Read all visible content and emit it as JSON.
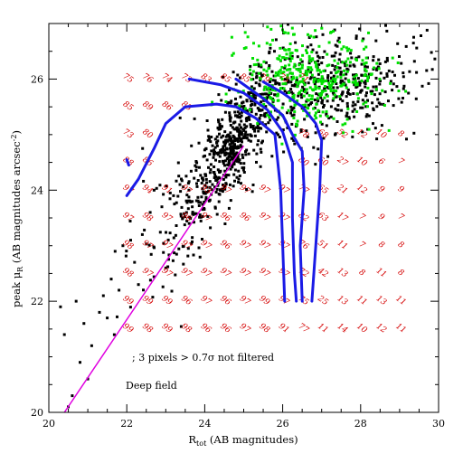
{
  "chart_data": {
    "type": "scatter",
    "title": "",
    "xlabel": "R",
    "xlabel_sub": "tot",
    "xlabel_suffix": " (AB magnitudes)",
    "ylabel": "peak μ",
    "ylabel_sub": "R",
    "ylabel_suffix": "  (AB magnitudes arcsec",
    "ylabel_sup": "-2",
    "ylabel_close": ")",
    "xlim": [
      20,
      30
    ],
    "ylim": [
      20,
      27
    ],
    "xticks": [
      20,
      22,
      24,
      26,
      28,
      30
    ],
    "yticks": [
      20,
      22,
      24,
      26
    ],
    "annotations": [
      "; 3 pixels > 0.7σ not filtered",
      "Deep field"
    ],
    "colors": {
      "black_points": "#000000",
      "green_points": "#00e000",
      "blue_curves": "#1a1ae6",
      "magenta_line": "#e000e0",
      "grid_numbers": "#d40000"
    },
    "completeness_grid": {
      "x": [
        22.0,
        22.5,
        23.0,
        23.5,
        24.0,
        24.5,
        25.0,
        25.5,
        26.0,
        26.5,
        27.0,
        27.5,
        28.0,
        28.5,
        29.0
      ],
      "rows": [
        {
          "y": 25.98,
          "values": [
            "75",
            "76",
            "74",
            "73",
            "83",
            "85",
            "85",
            "79",
            "75",
            "71",
            "",
            "",
            "",
            "",
            ""
          ]
        },
        {
          "y": 25.48,
          "values": [
            "85",
            "89",
            "86",
            "85",
            "",
            "",
            "",
            "",
            "",
            "",
            "",
            "",
            "",
            "",
            ""
          ]
        },
        {
          "y": 24.98,
          "values": [
            "73",
            "80",
            "",
            "",
            "",
            "",
            "",
            "",
            "",
            "78",
            "68",
            "52",
            "12",
            "10",
            "8"
          ]
        },
        {
          "y": 24.48,
          "values": [
            "88",
            "86",
            "",
            "",
            "",
            "",
            "",
            "",
            "",
            "80",
            "60",
            "27",
            "10",
            "6",
            "7"
          ]
        },
        {
          "y": 23.98,
          "values": [
            "97",
            "94",
            "91",
            "97",
            "93",
            "97",
            "97",
            "97",
            "97",
            "77",
            "65",
            "21",
            "12",
            "9",
            "9"
          ]
        },
        {
          "y": 23.48,
          "values": [
            "97",
            "98",
            "97",
            "96",
            "97",
            "96",
            "96",
            "97",
            "97",
            "82",
            "63",
            "17",
            "7",
            "9",
            "7"
          ]
        },
        {
          "y": 22.98,
          "values": [
            "98",
            "97",
            "97",
            "97",
            "97",
            "96",
            "97",
            "97",
            "97",
            "76",
            "51",
            "11",
            "7",
            "8",
            "8"
          ]
        },
        {
          "y": 22.48,
          "values": [
            "98",
            "97",
            "97",
            "97",
            "97",
            "97",
            "97",
            "97",
            "97",
            "72",
            "42",
            "13",
            "8",
            "11",
            "8"
          ]
        },
        {
          "y": 21.98,
          "values": [
            "99",
            "99",
            "99",
            "96",
            "97",
            "96",
            "97",
            "99",
            "97",
            "75",
            "25",
            "13",
            "11",
            "13",
            "11"
          ]
        },
        {
          "y": 21.48,
          "values": [
            "99",
            "98",
            "99",
            "98",
            "96",
            "96",
            "97",
            "98",
            "91",
            "77",
            "11",
            "14",
            "10",
            "12",
            "11"
          ]
        }
      ]
    },
    "series": [
      {
        "style": "curve",
        "points": [
          [
            22.0,
            23.9
          ],
          [
            22.3,
            24.2
          ],
          [
            22.7,
            24.75
          ],
          [
            23.0,
            25.2
          ],
          [
            23.5,
            25.5
          ],
          [
            24.3,
            25.55
          ],
          [
            24.8,
            25.5
          ],
          [
            25.3,
            25.3
          ],
          [
            25.8,
            25.0
          ],
          [
            25.95,
            24.0
          ],
          [
            26.05,
            22.0
          ]
        ]
      },
      {
        "style": "curve",
        "points": [
          [
            23.6,
            26.0
          ],
          [
            24.4,
            25.9
          ],
          [
            25.0,
            25.75
          ],
          [
            25.6,
            25.45
          ],
          [
            26.0,
            25.05
          ],
          [
            26.25,
            24.5
          ],
          [
            26.25,
            23.5
          ],
          [
            26.3,
            22.5
          ],
          [
            26.35,
            22.0
          ]
        ]
      },
      {
        "style": "curve",
        "points": [
          [
            24.8,
            26.0
          ],
          [
            25.5,
            25.65
          ],
          [
            26.0,
            25.35
          ],
          [
            26.25,
            25.0
          ],
          [
            26.5,
            24.7
          ],
          [
            26.55,
            24.0
          ],
          [
            26.45,
            23.0
          ],
          [
            26.5,
            22.0
          ]
        ]
      },
      {
        "style": "curve",
        "points": [
          [
            25.5,
            25.95
          ],
          [
            26.0,
            25.75
          ],
          [
            26.5,
            25.5
          ],
          [
            26.85,
            25.2
          ],
          [
            27.0,
            24.9
          ],
          [
            26.95,
            24.0
          ],
          [
            26.85,
            23.0
          ],
          [
            26.75,
            22.0
          ]
        ]
      },
      {
        "style": "curve",
        "points": [
          [
            22.0,
            24.55
          ],
          [
            22.05,
            24.45
          ]
        ]
      },
      {
        "style": "line",
        "points": [
          [
            20.4,
            20.0
          ],
          [
            25.0,
            24.8
          ]
        ]
      },
      {
        "style": "black-points",
        "generator": {
          "seed": 17,
          "clusters": [
            {
              "n": 520,
              "cx": 24.7,
              "cy": 24.8,
              "sx": 0.55,
              "sy": 0.65,
              "corr": 0.75
            },
            {
              "n": 420,
              "cx": 27.3,
              "cy": 25.9,
              "sx": 1.1,
              "sy": 0.45,
              "corr": 0.2
            },
            {
              "n": 90,
              "cx": 23.2,
              "cy": 23.4,
              "sx": 0.6,
              "sy": 0.8,
              "corr": 0.6
            }
          ]
        },
        "points": [
          [
            20.3,
            21.9
          ],
          [
            20.4,
            21.4
          ],
          [
            20.5,
            20.1
          ],
          [
            20.6,
            20.3
          ],
          [
            20.7,
            22.0
          ],
          [
            20.8,
            20.9
          ],
          [
            20.9,
            21.6
          ],
          [
            21.0,
            20.6
          ],
          [
            21.1,
            21.2
          ],
          [
            21.3,
            21.8
          ],
          [
            21.4,
            22.1
          ],
          [
            21.5,
            21.7
          ],
          [
            21.6,
            22.4
          ],
          [
            21.7,
            22.9
          ],
          [
            21.8,
            22.2
          ],
          [
            21.9,
            23.0
          ],
          [
            22.1,
            23.1
          ],
          [
            22.2,
            22.7
          ],
          [
            22.3,
            22.3
          ],
          [
            22.4,
            23.2
          ],
          [
            22.6,
            23.6
          ],
          [
            22.7,
            24.0
          ],
          [
            22.9,
            23.7
          ],
          [
            23.0,
            22.6
          ],
          [
            23.2,
            23.9
          ],
          [
            23.4,
            24.2
          ],
          [
            23.6,
            23.4
          ]
        ]
      },
      {
        "style": "green-points",
        "generator": {
          "seed": 29,
          "clusters": [
            {
              "n": 330,
              "cx": 26.6,
              "cy": 25.9,
              "sx": 0.9,
              "sy": 0.35,
              "corr": 0.1
            },
            {
              "n": 80,
              "cx": 26.3,
              "cy": 26.6,
              "sx": 0.9,
              "sy": 0.35,
              "corr": 0.0
            }
          ]
        }
      }
    ]
  }
}
